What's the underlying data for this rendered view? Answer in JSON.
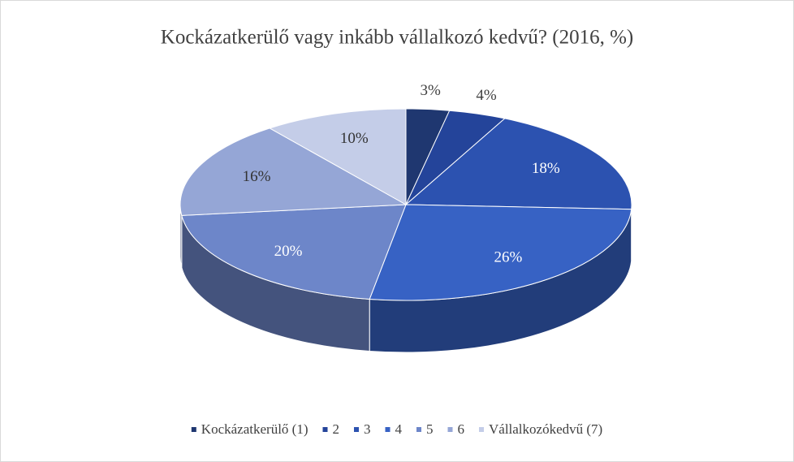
{
  "chart_data": {
    "type": "pie",
    "title": "Kockázatkerülő vagy inkább vállalkozó kedvű? (2016, %)",
    "categories": [
      "Kockázatkerülő (1)",
      "2",
      "3",
      "4",
      "5",
      "6",
      "Vállalkozókedvű (7)"
    ],
    "values": [
      3,
      4,
      18,
      26,
      20,
      16,
      10
    ],
    "value_labels": [
      "3%",
      "4%",
      "18%",
      "26%",
      "20%",
      "16%",
      "10%"
    ],
    "colors": [
      "#1f3770",
      "#24449a",
      "#2c52b0",
      "#3762c4",
      "#6d86c9",
      "#95a6d6",
      "#c4cde8"
    ],
    "legend": "bottom"
  }
}
